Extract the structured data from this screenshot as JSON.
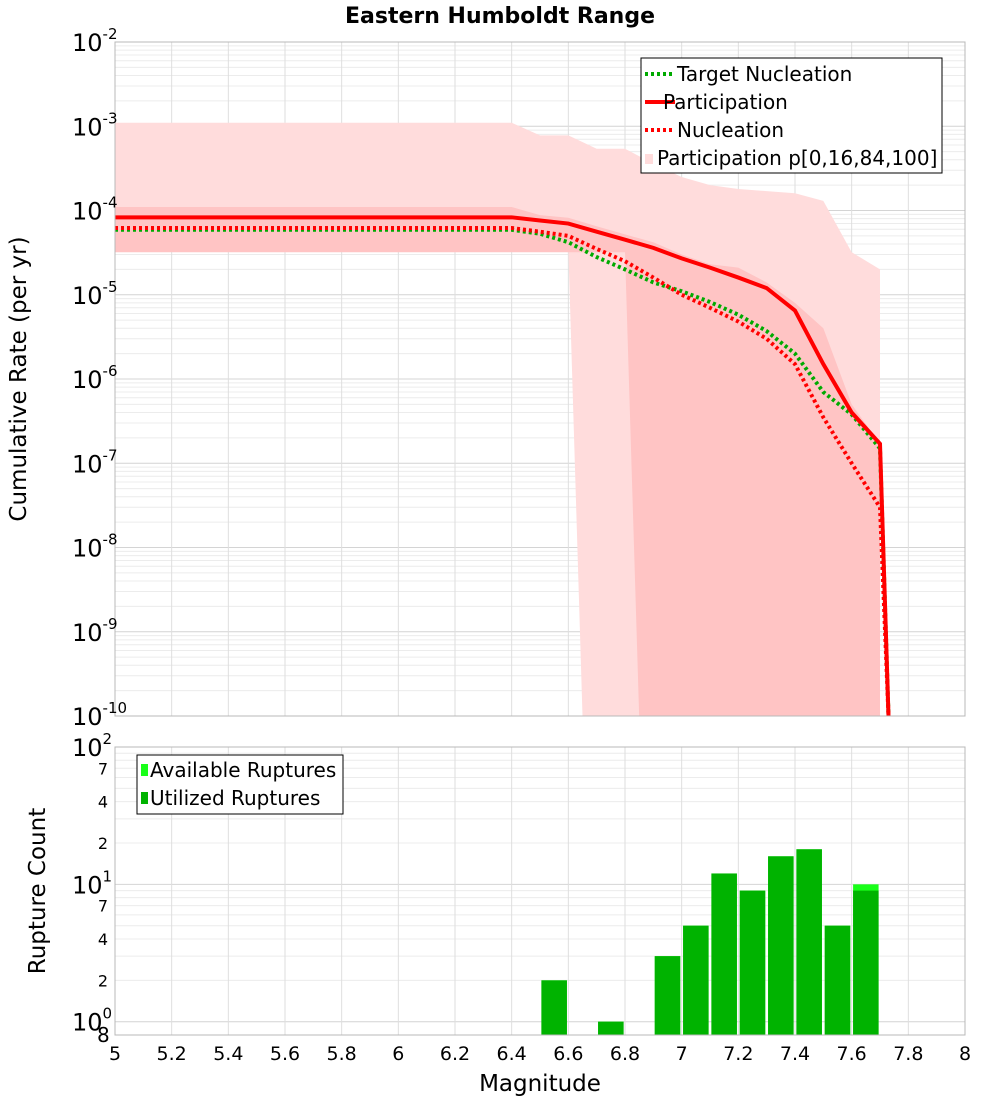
{
  "title": "Eastern Humboldt Range",
  "chart_data": [
    {
      "type": "line",
      "title": "Eastern Humboldt Range",
      "xlabel": "",
      "ylabel": "Cumulative Rate (per yr)",
      "xlim": [
        5,
        8
      ],
      "ylim": [
        1e-10,
        0.01
      ],
      "yscale": "log",
      "grid": true,
      "legend_position": "top-right",
      "y_ticks": [
        {
          "base": "10",
          "exp": "-2",
          "value": 0.01
        },
        {
          "base": "10",
          "exp": "-3",
          "value": 0.001
        },
        {
          "base": "10",
          "exp": "-4",
          "value": 0.0001
        },
        {
          "base": "10",
          "exp": "-5",
          "value": 1e-05
        },
        {
          "base": "10",
          "exp": "-6",
          "value": 1e-06
        },
        {
          "base": "10",
          "exp": "-7",
          "value": 1e-07
        },
        {
          "base": "10",
          "exp": "-8",
          "value": 1e-08
        },
        {
          "base": "10",
          "exp": "-9",
          "value": 1e-09
        },
        {
          "base": "10",
          "exp": "-10",
          "value": 1e-10
        }
      ],
      "bands": [
        {
          "name": "Participation p[0,16,84,100]",
          "level": "p0-p100",
          "color": "#ffdcdc",
          "x": [
            5.0,
            6.4,
            6.5,
            6.6,
            6.7,
            6.8,
            6.9,
            7.0,
            7.1,
            7.2,
            7.3,
            7.4,
            7.5,
            7.6,
            7.7
          ],
          "upper": [
            0.0011,
            0.0011,
            0.00078,
            0.00078,
            0.00054,
            0.00054,
            0.00036,
            0.00025,
            0.0002,
            0.00018,
            0.00017,
            0.00016,
            0.00013,
            3.2e-05,
            2e-05
          ],
          "lower": [
            3.5e-05,
            3.5e-05,
            3.5e-05,
            3.5e-05,
            1e-10,
            1e-10,
            1e-10,
            1e-10,
            1e-10,
            1e-10,
            1e-10,
            1e-10,
            1e-10,
            1e-10,
            1e-10
          ],
          "lower_x": [
            5.0,
            6.5,
            6.6,
            6.65,
            7.7
          ]
        },
        {
          "name": "",
          "level": "p16-p84",
          "color": "#ffc4c4",
          "x": [
            5.0,
            6.4,
            6.5,
            6.6,
            6.7,
            6.8,
            6.9,
            7.0,
            7.1,
            7.2,
            7.3,
            7.4,
            7.5,
            7.6,
            7.7
          ],
          "upper": [
            0.00011,
            0.00011,
            8.8e-05,
            8.2e-05,
            6.5e-05,
            5.2e-05,
            4.2e-05,
            3e-05,
            2.3e-05,
            2.1e-05,
            1.4e-05,
            8e-06,
            4e-06,
            5e-07,
            1.7e-07
          ],
          "lower": [
            3.2e-05,
            3.2e-05,
            3.2e-05,
            3.2e-05,
            3.2e-05,
            3.2e-05,
            1e-10,
            1e-10,
            1e-10,
            1e-10,
            1e-10,
            1e-10,
            1e-10,
            1e-10,
            1e-10
          ]
        }
      ],
      "series": [
        {
          "name": "Target Nucleation",
          "color": "#00aa00",
          "style": "dotted",
          "x": [
            5.0,
            6.4,
            6.5,
            6.6,
            6.7,
            6.8,
            6.9,
            7.0,
            7.1,
            7.2,
            7.3,
            7.4,
            7.5,
            7.6,
            7.7,
            7.73
          ],
          "y": [
            5.9e-05,
            5.9e-05,
            5.3e-05,
            4.2e-05,
            2.8e-05,
            2e-05,
            1.4e-05,
            1.1e-05,
            8.2e-06,
            5.8e-06,
            3.7e-06,
            2e-06,
            7e-07,
            3.8e-07,
            1.5e-07,
            1e-10
          ]
        },
        {
          "name": "Participation",
          "color": "#ff0000",
          "style": "solid",
          "x": [
            5.0,
            6.4,
            6.5,
            6.6,
            6.7,
            6.8,
            6.9,
            7.0,
            7.1,
            7.2,
            7.3,
            7.4,
            7.5,
            7.6,
            7.7,
            7.73
          ],
          "y": [
            8.3e-05,
            8.3e-05,
            7.6e-05,
            7e-05,
            5.6e-05,
            4.5e-05,
            3.6e-05,
            2.7e-05,
            2.1e-05,
            1.6e-05,
            1.2e-05,
            6.5e-06,
            1.5e-06,
            4e-07,
            1.7e-07,
            1e-10
          ]
        },
        {
          "name": "Nucleation",
          "color": "#ff0000",
          "style": "dotted",
          "x": [
            5.0,
            6.4,
            6.5,
            6.6,
            6.7,
            6.8,
            6.9,
            7.0,
            7.1,
            7.2,
            7.3,
            7.4,
            7.5,
            7.6,
            7.7,
            7.73
          ],
          "y": [
            6.2e-05,
            6.2e-05,
            5.6e-05,
            5e-05,
            3.5e-05,
            2.5e-05,
            1.6e-05,
            1e-05,
            7e-06,
            4.8e-06,
            3e-06,
            1.5e-06,
            3.5e-07,
            1e-07,
            3e-08,
            1e-10
          ]
        }
      ],
      "legend": [
        {
          "label": "Target Nucleation",
          "kind": "dotted",
          "color": "#00aa00"
        },
        {
          "label": "Participation",
          "kind": "solid",
          "color": "#ff0000"
        },
        {
          "label": "Nucleation",
          "kind": "dotted",
          "color": "#ff0000"
        },
        {
          "label": "Participation p[0,16,84,100]",
          "kind": "patch",
          "color": "#ffdcdc"
        }
      ]
    },
    {
      "type": "bar",
      "title": "",
      "xlabel": "Magnitude",
      "ylabel": "Rupture Count",
      "xlim": [
        5,
        8
      ],
      "ylim": [
        0.8,
        100
      ],
      "yscale": "log",
      "grid": true,
      "legend_position": "top-left",
      "x_ticks": [
        "5",
        "5.2",
        "5.4",
        "5.6",
        "5.8",
        "6",
        "6.2",
        "6.4",
        "6.6",
        "6.8",
        "7",
        "7.2",
        "7.4",
        "7.6",
        "7.8",
        "8"
      ],
      "y_major_ticks": [
        {
          "base": "10",
          "exp": "2",
          "value": 100
        },
        {
          "base": "10",
          "exp": "1",
          "value": 10
        },
        {
          "base": "10",
          "exp": "0",
          "value": 1
        }
      ],
      "y_minor_ticks": [
        {
          "label": "7",
          "value": 70
        },
        {
          "label": "4",
          "value": 40
        },
        {
          "label": "2",
          "value": 20
        },
        {
          "label": "7",
          "value": 7
        },
        {
          "label": "4",
          "value": 4
        },
        {
          "label": "2",
          "value": 2
        }
      ],
      "y_bottom_label": "8",
      "bar_width": 0.09,
      "centers": [
        6.55,
        6.75,
        6.95,
        7.05,
        7.15,
        7.25,
        7.35,
        7.45,
        7.55,
        7.65
      ],
      "series": [
        {
          "name": "Available Ruptures",
          "color": "#19ff19",
          "values": [
            2,
            1,
            3,
            5,
            12,
            9,
            16,
            18,
            5,
            10
          ]
        },
        {
          "name": "Utilized Ruptures",
          "color": "#00b300",
          "values": [
            2,
            1,
            3,
            5,
            12,
            9,
            16,
            18,
            5,
            9
          ]
        }
      ],
      "legend": [
        {
          "label": "Available Ruptures",
          "color": "#19ff19"
        },
        {
          "label": "Utilized Ruptures",
          "color": "#00b300"
        }
      ]
    }
  ]
}
